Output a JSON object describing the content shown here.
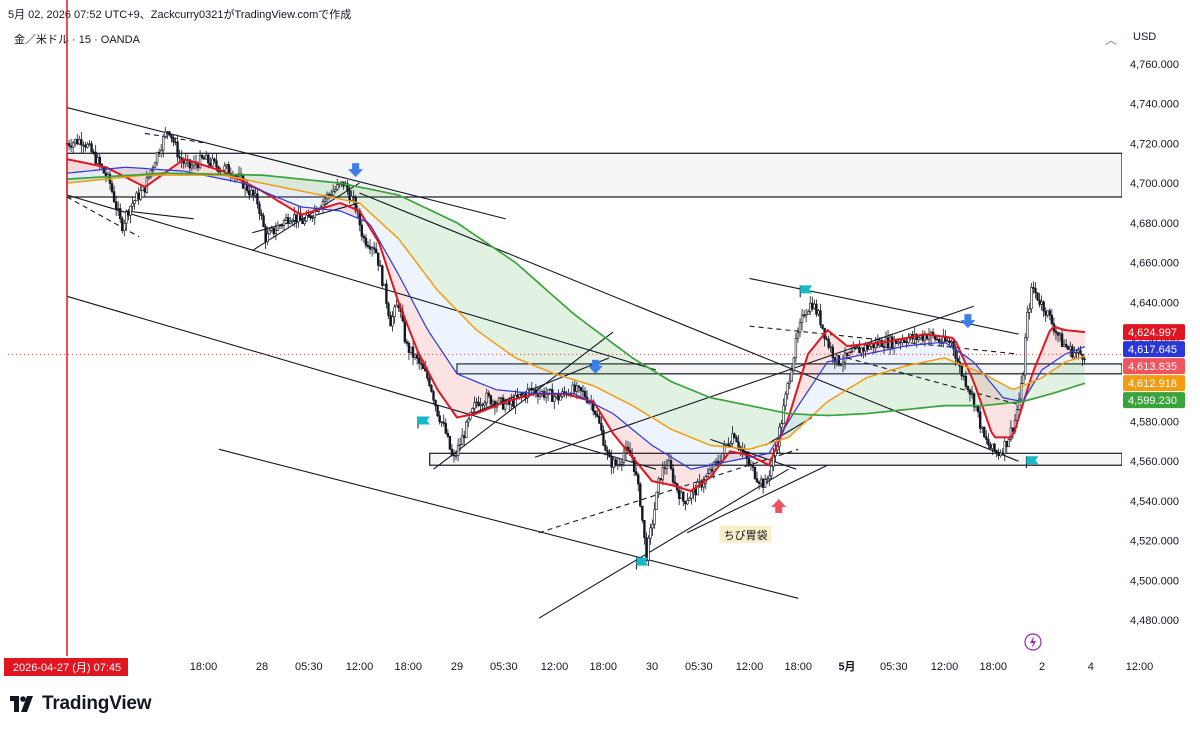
{
  "header": {
    "caption": "5月 02, 2026 07:52 UTC+9、Zackcurry0321がTradingView.comで作成"
  },
  "symbol": {
    "label": "金／米ドル · 15 · OANDA"
  },
  "currency": "USD",
  "brand": {
    "name": "TradingView"
  },
  "colors": {
    "ema_fast": "#e0151f",
    "ema_mid": "#2b37d8",
    "ema_slow": "#f39c12",
    "ema_long": "#3aa33a",
    "candle": "#131722",
    "zone": "#f2f2f2",
    "signal_down": "#3f7de8",
    "signal_up": "#ef5361",
    "flag": "#19b8c8"
  },
  "chart_data": {
    "type": "candlestick",
    "symbol": "XAU/USD",
    "interval": "15",
    "broker": "OANDA",
    "ylim": [
      4465,
      4770
    ],
    "y_ticks": [
      4480,
      4500,
      4520,
      4540,
      4560,
      4580,
      4600,
      4620,
      4640,
      4660,
      4680,
      4700,
      4720,
      4740,
      4760
    ],
    "y_tick_labels": [
      "4,480.000",
      "4,500.000",
      "4,520.000",
      "4,540.000",
      "4,560.000",
      "4,580.000",
      "4,600.000",
      "4,620.000",
      "4,640.000",
      "4,660.000",
      "4,680.000",
      "4,700.000",
      "4,720.000",
      "4,740.000",
      "4,760.000"
    ],
    "x_ticks": [
      {
        "label": "18:00",
        "t": 0.7
      },
      {
        "label": "28",
        "t": 1.0
      },
      {
        "label": "05:30",
        "t": 1.24
      },
      {
        "label": "12:00",
        "t": 1.5
      },
      {
        "label": "18:00",
        "t": 1.75
      },
      {
        "label": "29",
        "t": 2.0
      },
      {
        "label": "05:30",
        "t": 2.24
      },
      {
        "label": "12:00",
        "t": 2.5
      },
      {
        "label": "18:00",
        "t": 2.75
      },
      {
        "label": "30",
        "t": 3.0
      },
      {
        "label": "05:30",
        "t": 3.24
      },
      {
        "label": "12:00",
        "t": 3.5
      },
      {
        "label": "18:00",
        "t": 3.75
      },
      {
        "label": "5月",
        "t": 4.0
      },
      {
        "label": "05:30",
        "t": 4.24
      },
      {
        "label": "12:00",
        "t": 4.5
      },
      {
        "label": "18:00",
        "t": 4.75
      },
      {
        "label": "2",
        "t": 5.0
      },
      {
        "label": "4",
        "t": 5.25
      },
      {
        "label": "12:00",
        "t": 5.5
      }
    ],
    "crosshair_time": {
      "label": "2026-04-27 (月)  07:45",
      "t": 0.0
    },
    "price_close": [
      [
        0.0,
        4720
      ],
      [
        0.08,
        4722
      ],
      [
        0.15,
        4712
      ],
      [
        0.22,
        4700
      ],
      [
        0.28,
        4678
      ],
      [
        0.32,
        4688
      ],
      [
        0.4,
        4698
      ],
      [
        0.45,
        4712
      ],
      [
        0.52,
        4728
      ],
      [
        0.58,
        4712
      ],
      [
        0.63,
        4708
      ],
      [
        0.7,
        4712
      ],
      [
        0.78,
        4708
      ],
      [
        0.85,
        4706
      ],
      [
        0.92,
        4698
      ],
      [
        0.98,
        4690
      ],
      [
        1.02,
        4672
      ],
      [
        1.08,
        4678
      ],
      [
        1.15,
        4684
      ],
      [
        1.22,
        4680
      ],
      [
        1.28,
        4688
      ],
      [
        1.35,
        4695
      ],
      [
        1.42,
        4700
      ],
      [
        1.48,
        4688
      ],
      [
        1.52,
        4672
      ],
      [
        1.58,
        4668
      ],
      [
        1.62,
        4650
      ],
      [
        1.66,
        4630
      ],
      [
        1.7,
        4640
      ],
      [
        1.74,
        4618
      ],
      [
        1.8,
        4610
      ],
      [
        1.86,
        4600
      ],
      [
        1.9,
        4585
      ],
      [
        1.94,
        4575
      ],
      [
        1.98,
        4560
      ],
      [
        2.02,
        4570
      ],
      [
        2.06,
        4580
      ],
      [
        2.1,
        4590
      ],
      [
        2.15,
        4592
      ],
      [
        2.2,
        4590
      ],
      [
        2.26,
        4588
      ],
      [
        2.32,
        4592
      ],
      [
        2.38,
        4596
      ],
      [
        2.45,
        4594
      ],
      [
        2.52,
        4592
      ],
      [
        2.58,
        4596
      ],
      [
        2.65,
        4594
      ],
      [
        2.7,
        4588
      ],
      [
        2.74,
        4575
      ],
      [
        2.78,
        4560
      ],
      [
        2.82,
        4558
      ],
      [
        2.86,
        4565
      ],
      [
        2.9,
        4562
      ],
      [
        2.94,
        4540
      ],
      [
        2.97,
        4512
      ],
      [
        3.0,
        4528
      ],
      [
        3.04,
        4552
      ],
      [
        3.08,
        4560
      ],
      [
        3.12,
        4548
      ],
      [
        3.16,
        4540
      ],
      [
        3.22,
        4545
      ],
      [
        3.28,
        4552
      ],
      [
        3.34,
        4560
      ],
      [
        3.38,
        4568
      ],
      [
        3.42,
        4575
      ],
      [
        3.46,
        4565
      ],
      [
        3.5,
        4558
      ],
      [
        3.54,
        4552
      ],
      [
        3.58,
        4548
      ],
      [
        3.62,
        4560
      ],
      [
        3.66,
        4578
      ],
      [
        3.7,
        4600
      ],
      [
        3.74,
        4620
      ],
      [
        3.78,
        4635
      ],
      [
        3.82,
        4640
      ],
      [
        3.86,
        4632
      ],
      [
        3.9,
        4620
      ],
      [
        3.95,
        4610
      ],
      [
        4.0,
        4612
      ],
      [
        4.06,
        4616
      ],
      [
        4.12,
        4618
      ],
      [
        4.18,
        4620
      ],
      [
        4.24,
        4620
      ],
      [
        4.3,
        4622
      ],
      [
        4.36,
        4622
      ],
      [
        4.42,
        4624
      ],
      [
        4.48,
        4620
      ],
      [
        4.54,
        4620
      ],
      [
        4.58,
        4606
      ],
      [
        4.62,
        4598
      ],
      [
        4.66,
        4588
      ],
      [
        4.7,
        4572
      ],
      [
        4.74,
        4566
      ],
      [
        4.78,
        4564
      ],
      [
        4.82,
        4570
      ],
      [
        4.86,
        4580
      ],
      [
        4.9,
        4600
      ],
      [
        4.92,
        4630
      ],
      [
        4.95,
        4648
      ],
      [
        4.98,
        4642
      ],
      [
        5.02,
        4636
      ],
      [
        5.06,
        4628
      ],
      [
        5.1,
        4620
      ],
      [
        5.14,
        4616
      ],
      [
        5.18,
        4614
      ],
      [
        5.22,
        4613.8
      ]
    ],
    "series": [
      {
        "id": "ema_fast",
        "points": [
          [
            0.0,
            4712
          ],
          [
            0.2,
            4708
          ],
          [
            0.4,
            4698
          ],
          [
            0.6,
            4712
          ],
          [
            0.8,
            4706
          ],
          [
            1.0,
            4696
          ],
          [
            1.2,
            4684
          ],
          [
            1.4,
            4690
          ],
          [
            1.5,
            4686
          ],
          [
            1.6,
            4670
          ],
          [
            1.7,
            4640
          ],
          [
            1.8,
            4615
          ],
          [
            1.9,
            4596
          ],
          [
            2.0,
            4582
          ],
          [
            2.1,
            4584
          ],
          [
            2.25,
            4590
          ],
          [
            2.4,
            4594
          ],
          [
            2.55,
            4594
          ],
          [
            2.7,
            4590
          ],
          [
            2.8,
            4574
          ],
          [
            2.9,
            4562
          ],
          [
            3.0,
            4550
          ],
          [
            3.1,
            4548
          ],
          [
            3.2,
            4545
          ],
          [
            3.3,
            4552
          ],
          [
            3.4,
            4565
          ],
          [
            3.5,
            4563
          ],
          [
            3.6,
            4558
          ],
          [
            3.7,
            4582
          ],
          [
            3.8,
            4614
          ],
          [
            3.9,
            4626
          ],
          [
            4.0,
            4618
          ],
          [
            4.2,
            4620
          ],
          [
            4.4,
            4624
          ],
          [
            4.55,
            4622
          ],
          [
            4.65,
            4600
          ],
          [
            4.75,
            4572
          ],
          [
            4.85,
            4572
          ],
          [
            4.95,
            4604
          ],
          [
            5.05,
            4628
          ],
          [
            5.12,
            4626
          ],
          [
            5.22,
            4624.997
          ]
        ]
      },
      {
        "id": "ema_mid",
        "points": [
          [
            0.0,
            4705
          ],
          [
            0.3,
            4708
          ],
          [
            0.6,
            4706
          ],
          [
            0.9,
            4700
          ],
          [
            1.2,
            4688
          ],
          [
            1.4,
            4686
          ],
          [
            1.55,
            4680
          ],
          [
            1.7,
            4654
          ],
          [
            1.85,
            4626
          ],
          [
            2.0,
            4604
          ],
          [
            2.2,
            4596
          ],
          [
            2.4,
            4594
          ],
          [
            2.6,
            4594
          ],
          [
            2.8,
            4584
          ],
          [
            3.0,
            4568
          ],
          [
            3.2,
            4556
          ],
          [
            3.4,
            4560
          ],
          [
            3.6,
            4564
          ],
          [
            3.75,
            4588
          ],
          [
            3.9,
            4610
          ],
          [
            4.1,
            4614
          ],
          [
            4.3,
            4618
          ],
          [
            4.5,
            4620
          ],
          [
            4.65,
            4610
          ],
          [
            4.8,
            4592
          ],
          [
            4.9,
            4590
          ],
          [
            5.0,
            4606
          ],
          [
            5.12,
            4614
          ],
          [
            5.22,
            4617.645
          ]
        ]
      },
      {
        "id": "ema_slow",
        "points": [
          [
            0.0,
            4700
          ],
          [
            0.4,
            4704
          ],
          [
            0.8,
            4704
          ],
          [
            1.2,
            4696
          ],
          [
            1.5,
            4690
          ],
          [
            1.7,
            4672
          ],
          [
            1.9,
            4646
          ],
          [
            2.1,
            4626
          ],
          [
            2.3,
            4612
          ],
          [
            2.5,
            4604
          ],
          [
            2.7,
            4598
          ],
          [
            2.9,
            4588
          ],
          [
            3.1,
            4576
          ],
          [
            3.3,
            4568
          ],
          [
            3.5,
            4566
          ],
          [
            3.7,
            4572
          ],
          [
            3.9,
            4590
          ],
          [
            4.1,
            4602
          ],
          [
            4.3,
            4608
          ],
          [
            4.5,
            4612
          ],
          [
            4.7,
            4604
          ],
          [
            4.85,
            4596
          ],
          [
            5.0,
            4602
          ],
          [
            5.12,
            4610
          ],
          [
            5.22,
            4612.918
          ]
        ]
      },
      {
        "id": "ema_long",
        "points": [
          [
            0.0,
            4702
          ],
          [
            0.5,
            4705
          ],
          [
            1.0,
            4704
          ],
          [
            1.4,
            4700
          ],
          [
            1.7,
            4694
          ],
          [
            2.0,
            4680
          ],
          [
            2.3,
            4660
          ],
          [
            2.6,
            4634
          ],
          [
            2.9,
            4612
          ],
          [
            3.1,
            4600
          ],
          [
            3.3,
            4592
          ],
          [
            3.5,
            4588
          ],
          [
            3.7,
            4584
          ],
          [
            3.9,
            4583
          ],
          [
            4.1,
            4584
          ],
          [
            4.3,
            4586
          ],
          [
            4.5,
            4588
          ],
          [
            4.7,
            4588
          ],
          [
            4.9,
            4590
          ],
          [
            5.05,
            4594
          ],
          [
            5.22,
            4599.23
          ]
        ]
      }
    ],
    "price_labels": [
      {
        "series": "ema_fast",
        "text": "4,624.997",
        "value": 4624.997
      },
      {
        "series": "ema_mid",
        "text": "4,617.645",
        "value": 4617.645
      },
      {
        "series": "last",
        "text": "4,613.835",
        "value": 4613.835
      },
      {
        "series": "ema_slow",
        "text": "4,612.918",
        "value": 4612.918
      },
      {
        "series": "ema_long",
        "text": "4,599.230",
        "value": 4599.23
      }
    ],
    "zones": [
      {
        "t0": 0.0,
        "t1": 6.0,
        "y0": 4693,
        "y1": 4715
      },
      {
        "t0": 2.0,
        "t1": 6.0,
        "y0": 4604,
        "y1": 4609
      },
      {
        "t0": 1.86,
        "t1": 6.0,
        "y0": 4558,
        "y1": 4564
      }
    ],
    "trendlines": [
      {
        "t0": 0.0,
        "v0": 4738,
        "t1": 2.25,
        "v1": 4682,
        "dash": false
      },
      {
        "t0": 0.0,
        "v0": 4694,
        "t1": 3.02,
        "v1": 4606,
        "dash": false
      },
      {
        "t0": 0.0,
        "v0": 4693,
        "t1": 0.37,
        "v1": 4673,
        "dash": true
      },
      {
        "t0": 0.0,
        "v0": 4643,
        "t1": 3.02,
        "v1": 4556,
        "dash": false
      },
      {
        "t0": 0.78,
        "v0": 4566,
        "t1": 3.75,
        "v1": 4491,
        "dash": false
      },
      {
        "t0": 0.95,
        "v0": 4666,
        "t1": 1.5,
        "v1": 4700,
        "dash": false
      },
      {
        "t0": 0.95,
        "v0": 4675,
        "t1": 1.5,
        "v1": 4690,
        "dash": false
      },
      {
        "t0": 1.5,
        "v0": 4695,
        "t1": 4.88,
        "v1": 4560,
        "dash": false
      },
      {
        "t0": 2.08,
        "v0": 4584,
        "t1": 2.78,
        "v1": 4612,
        "dash": false
      },
      {
        "t0": 1.88,
        "v0": 4556,
        "t1": 2.8,
        "v1": 4625,
        "dash": false
      },
      {
        "t0": 2.4,
        "v0": 4562,
        "t1": 4.65,
        "v1": 4638,
        "dash": false
      },
      {
        "t0": 3.5,
        "v0": 4628,
        "t1": 4.87,
        "v1": 4614,
        "dash": true
      },
      {
        "t0": 4.0,
        "v0": 4612,
        "t1": 4.9,
        "v1": 4588,
        "dash": true
      },
      {
        "t0": 2.42,
        "v0": 4524,
        "t1": 3.75,
        "v1": 4566,
        "dash": true
      },
      {
        "t0": 2.42,
        "v0": 4481,
        "t1": 3.7,
        "v1": 4556,
        "dash": false
      },
      {
        "t0": 3.18,
        "v0": 4524,
        "t1": 3.9,
        "v1": 4558,
        "dash": false
      },
      {
        "t0": 3.5,
        "v0": 4652,
        "t1": 4.88,
        "v1": 4624,
        "dash": false
      },
      {
        "t0": 3.58,
        "v0": 4568,
        "t1": 3.82,
        "v1": 4582,
        "dash": false
      },
      {
        "t0": 3.3,
        "v0": 4571,
        "t1": 3.74,
        "v1": 4556,
        "dash": false
      },
      {
        "t0": 0.3,
        "v0": 4686,
        "t1": 0.65,
        "v1": 4682,
        "dash": false
      },
      {
        "t0": 0.4,
        "v0": 4725,
        "t1": 0.72,
        "v1": 4720,
        "dash": true
      }
    ],
    "signals": [
      {
        "type": "down",
        "t": 1.48,
        "v": 4704
      },
      {
        "type": "down",
        "t": 2.71,
        "v": 4605
      },
      {
        "type": "down",
        "t": 4.62,
        "v": 4628
      },
      {
        "type": "up",
        "t": 3.65,
        "v": 4540
      }
    ],
    "flags": [
      {
        "t": 1.8,
        "v": 4580
      },
      {
        "t": 2.92,
        "v": 4509
      },
      {
        "t": 3.76,
        "v": 4646
      },
      {
        "t": 4.92,
        "v": 4560
      }
    ],
    "annotation": {
      "text": "ちび胃袋",
      "t": 3.48,
      "v": 4523
    },
    "crosshair_level": 4613.835
  }
}
